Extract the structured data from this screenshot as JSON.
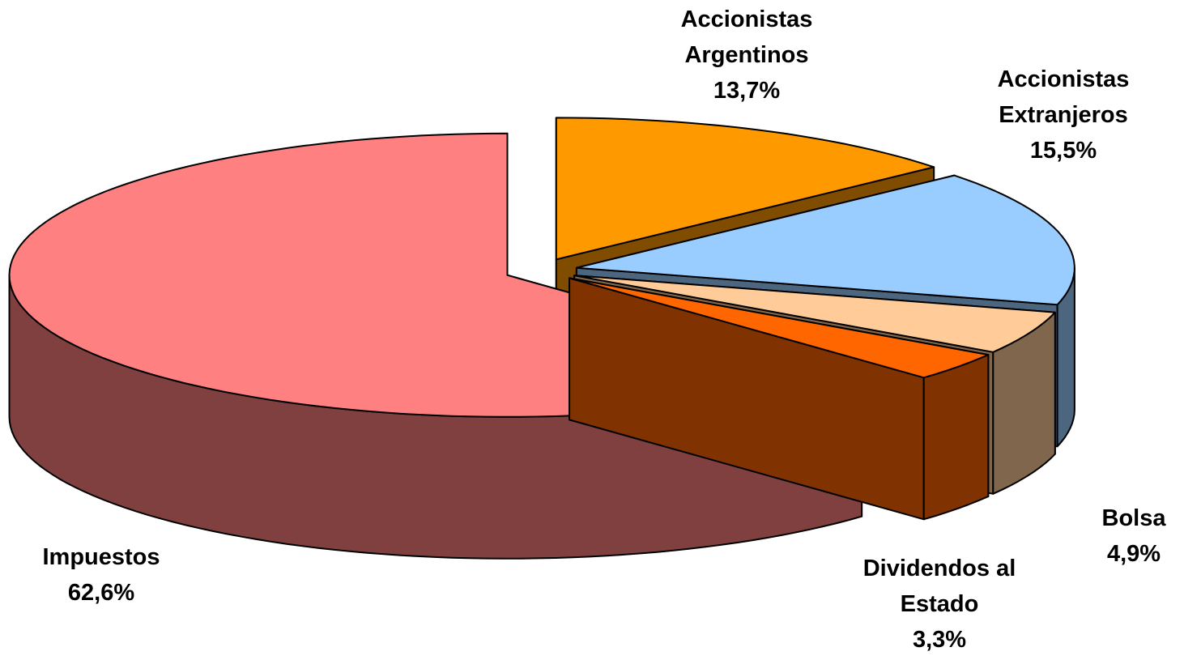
{
  "chart_data": {
    "type": "pie",
    "style": "3d-exploded",
    "categories": [
      "Accionistas Argentinos",
      "Accionistas Extranjeros",
      "Bolsa",
      "Dividendos al Estado",
      "Impuestos"
    ],
    "values": [
      13.7,
      15.5,
      4.9,
      3.3,
      62.6
    ],
    "value_labels": [
      "13,7%",
      "15,5%",
      "4,9%",
      "3,3%",
      "62,6%"
    ],
    "colors": [
      "#ff9900",
      "#99ccff",
      "#ffcc99",
      "#ff6600",
      "#ff8080"
    ]
  }
}
